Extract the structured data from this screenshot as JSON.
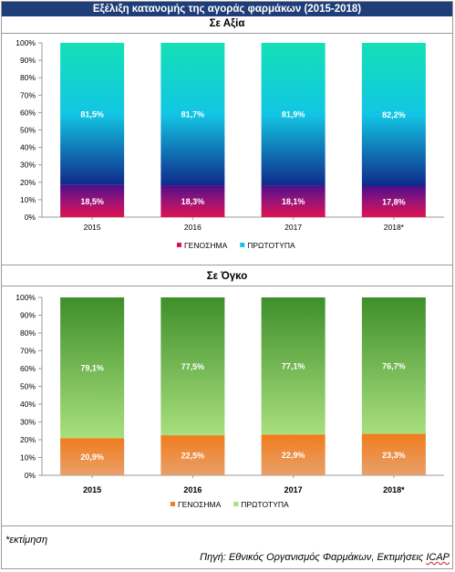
{
  "page_title": "Εξέλιξη κατανομής της αγοράς φαρμάκων (2015-2018)",
  "colors": {
    "banner": "#1f3e79",
    "value_generic_top": "#4b0f8a",
    "value_generic_mid": "#9b1377",
    "value_generic_bottom": "#e0124f",
    "value_original_top": "#13e0b6",
    "value_original_mid": "#12c6e4",
    "value_original_bottom": "#0f2a8a",
    "volume_generic_top": "#f07c1d",
    "volume_generic_bottom": "#e8a06a",
    "volume_original_top": "#3e8f2a",
    "volume_original_bottom": "#a9df7e"
  },
  "chart_data": [
    {
      "type": "bar",
      "stacked": true,
      "title": "Σε Αξία",
      "categories": [
        "2015",
        "2016",
        "2017",
        "2018*"
      ],
      "series": [
        {
          "name": "ΓΕΝΟΣΗΜΑ",
          "values": [
            18.5,
            18.3,
            18.1,
            17.8
          ],
          "labels": [
            "18,5%",
            "18,3%",
            "18,1%",
            "17,8%"
          ]
        },
        {
          "name": "ΠΡΩΤΟΤΥΠΑ",
          "values": [
            81.5,
            81.7,
            81.9,
            82.2
          ],
          "labels": [
            "81,5%",
            "81,7%",
            "81,9%",
            "82,2%"
          ]
        }
      ],
      "y_ticks": [
        "0%",
        "10%",
        "20%",
        "30%",
        "40%",
        "50%",
        "60%",
        "70%",
        "80%",
        "90%",
        "100%"
      ],
      "ylim": [
        0,
        100
      ],
      "grid": false,
      "legend": "bottom"
    },
    {
      "type": "bar",
      "stacked": true,
      "title": "Σε Όγκο",
      "categories": [
        "2015",
        "2016",
        "2017",
        "2018*"
      ],
      "series": [
        {
          "name": "ΓΕΝΟΣΗΜΑ",
          "values": [
            20.9,
            22.5,
            22.9,
            23.3
          ],
          "labels": [
            "20,9%",
            "22,5%",
            "22,9%",
            "23,3%"
          ]
        },
        {
          "name": "ΠΡΩΤΟΤΥΠΑ",
          "values": [
            79.1,
            77.5,
            77.1,
            76.7
          ],
          "labels": [
            "79,1%",
            "77,5%",
            "77,1%",
            "76,7%"
          ]
        }
      ],
      "y_ticks": [
        "0%",
        "10%",
        "20%",
        "30%",
        "40%",
        "50%",
        "60%",
        "70%",
        "80%",
        "90%",
        "100%"
      ],
      "ylim": [
        0,
        100
      ],
      "grid": false,
      "legend": "bottom"
    }
  ],
  "footnote": "*εκτίμηση",
  "source": {
    "text": "Πηγή: Εθνικός Οργανισμός Φαρμάκων, Εκτιμήσεις",
    "org": "ICAP"
  }
}
